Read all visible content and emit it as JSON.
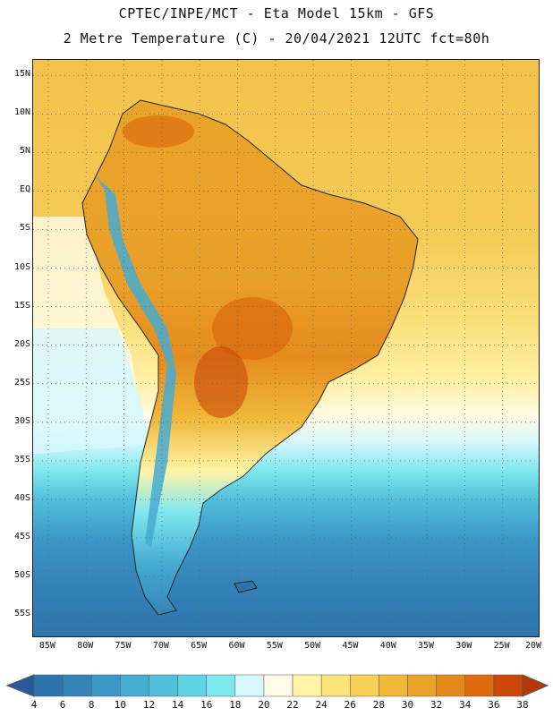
{
  "title": {
    "line1": "CPTEC/INPE/MCT -  Eta Model 15km - GFS",
    "line2": "2 Metre Temperature (C) - 20/04/2021 12UTC fct=80h"
  },
  "map": {
    "region": "South America",
    "lat_range": [
      -58,
      17
    ],
    "lon_range": [
      -87,
      -20
    ],
    "lat_labels": [
      "15N",
      "10N",
      "5N",
      "EQ",
      "5S",
      "10S",
      "15S",
      "20S",
      "25S",
      "30S",
      "35S",
      "40S",
      "45S",
      "50S",
      "55S"
    ],
    "lat_values": [
      15,
      10,
      5,
      0,
      -5,
      -10,
      -15,
      -20,
      -25,
      -30,
      -35,
      -40,
      -45,
      -50,
      -55
    ],
    "lon_labels": [
      "85W",
      "80W",
      "75W",
      "70W",
      "65W",
      "60W",
      "55W",
      "50W",
      "45W",
      "40W",
      "35W",
      "30W",
      "25W",
      "20W"
    ],
    "lon_values": [
      -85,
      -80,
      -75,
      -70,
      -65,
      -60,
      -55,
      -50,
      -45,
      -40,
      -35,
      -30,
      -25,
      -20
    ],
    "field": "2 Metre Temperature",
    "units": "C"
  },
  "colorbar": {
    "labels": [
      "4",
      "6",
      "8",
      "10",
      "12",
      "14",
      "16",
      "18",
      "20",
      "22",
      "24",
      "26",
      "28",
      "30",
      "32",
      "34",
      "36",
      "38"
    ],
    "colors": [
      "#2d74ae",
      "#3484b8",
      "#3b97c6",
      "#45acd2",
      "#52bfdc",
      "#61d3e6",
      "#7fe8ef",
      "#d6f7fb",
      "#fffbe8",
      "#fff3a6",
      "#fde47a",
      "#f8cf58",
      "#f0b93a",
      "#eba42a",
      "#e48a1c",
      "#dc6c0e",
      "#c9470a",
      "#b2380a"
    ],
    "low_color": "#2a5a9a",
    "high_color": "#b2380a"
  }
}
